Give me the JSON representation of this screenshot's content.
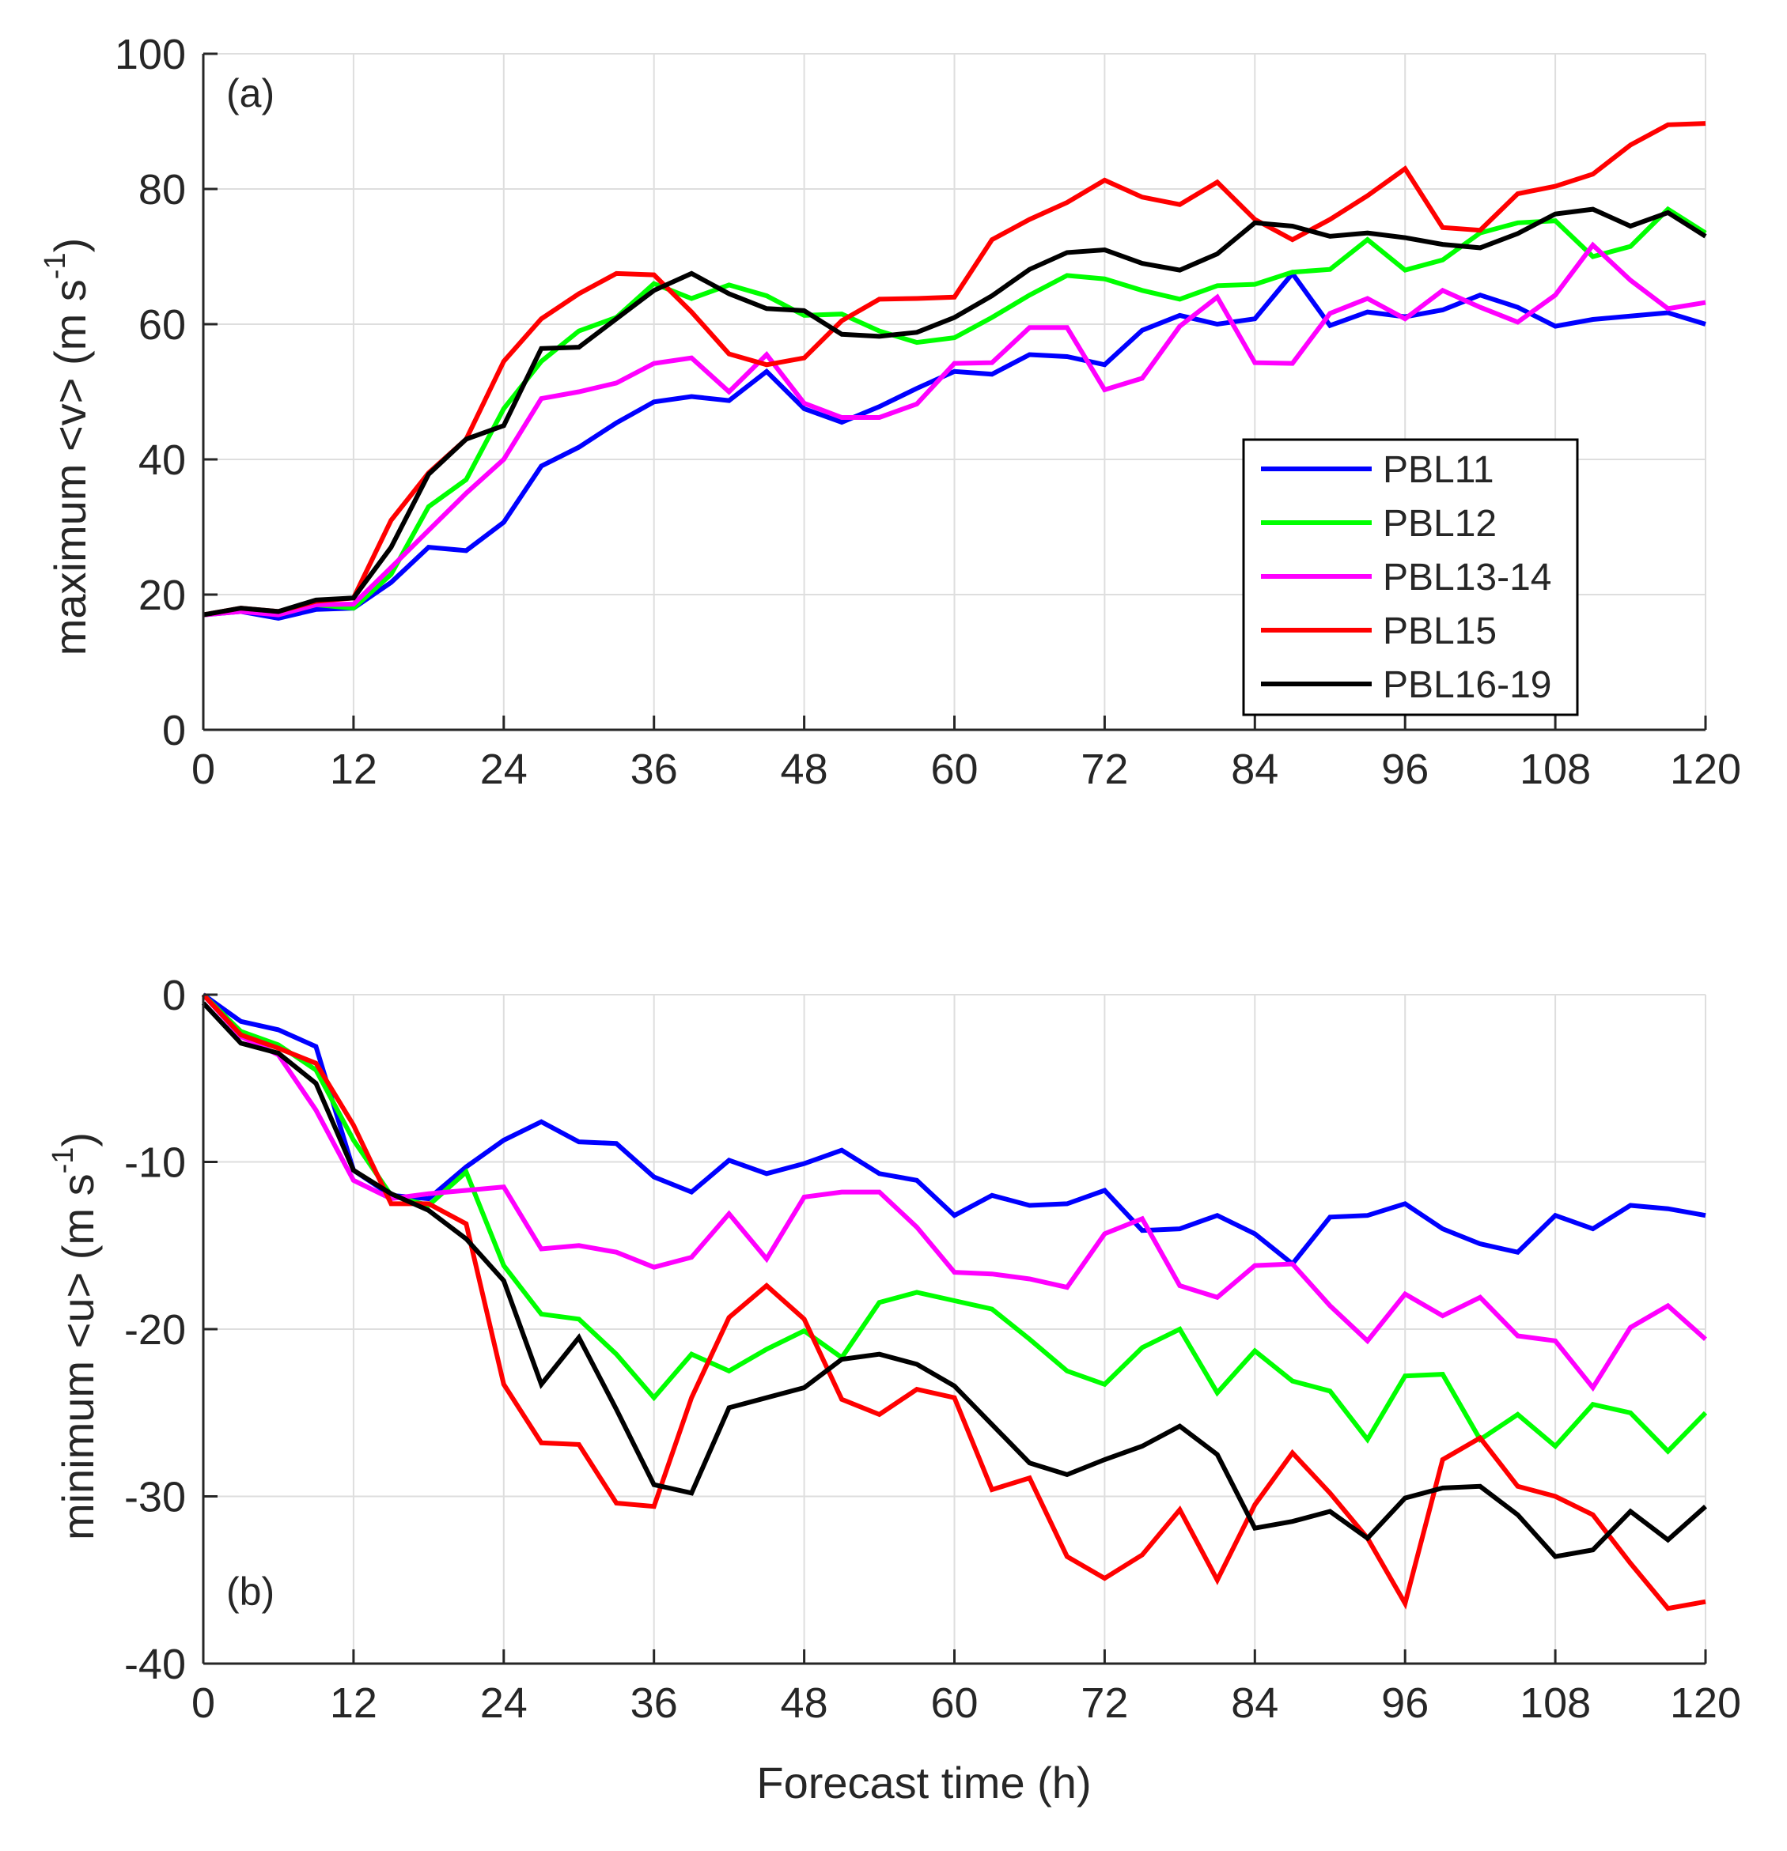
{
  "chart_data": [
    {
      "type": "line",
      "panel_label": "(a)",
      "title": "",
      "xlabel": "",
      "ylabel_main": "maximum <v> (m s",
      "ylabel_sup": "-1",
      "ylabel_end": ")",
      "xlim": [
        0,
        120
      ],
      "ylim": [
        0,
        100
      ],
      "xticks": [
        0,
        12,
        24,
        36,
        48,
        60,
        72,
        84,
        96,
        108,
        120
      ],
      "yticks": [
        0,
        20,
        40,
        60,
        80,
        100
      ],
      "grid": true,
      "legend": "right",
      "x": [
        0,
        3,
        6,
        9,
        12,
        15,
        18,
        21,
        24,
        27,
        30,
        33,
        36,
        39,
        42,
        45,
        48,
        51,
        54,
        57,
        60,
        63,
        66,
        69,
        72,
        75,
        78,
        81,
        84,
        87,
        90,
        93,
        96,
        99,
        102,
        105,
        108,
        111,
        114,
        117,
        120
      ],
      "series": [
        {
          "name": "PBL11",
          "color": "#0000ff",
          "values": [
            17,
            17.5,
            16.5,
            17.8,
            18,
            21.8,
            27,
            26.5,
            30.7,
            39,
            41.8,
            45.4,
            48.5,
            49.3,
            48.7,
            53,
            47.5,
            45.5,
            47.8,
            50.5,
            53,
            52.6,
            55.5,
            55.2,
            54,
            59.1,
            61.3,
            60,
            60.8,
            67.5,
            59.8,
            61.8,
            61.1,
            62.1,
            64.3,
            62.5,
            59.7,
            60.7,
            61.2,
            61.7,
            60
          ]
        },
        {
          "name": "PBL12",
          "color": "#00ff00",
          "values": [
            17,
            17.8,
            17,
            18.5,
            18,
            23,
            33,
            37,
            47.5,
            54.5,
            59,
            61,
            66,
            63.8,
            65.8,
            64.2,
            61.3,
            61.5,
            59,
            57.3,
            58,
            61,
            64.3,
            67.2,
            66.7,
            65,
            63.7,
            65.7,
            65.9,
            67.7,
            68.1,
            72.5,
            68,
            69.5,
            73.5,
            75,
            75.3,
            70,
            71.5,
            77,
            73.5
          ]
        },
        {
          "name": "PBL13-14",
          "color": "#ff00ff",
          "values": [
            17,
            17.5,
            17,
            18.5,
            18.6,
            24,
            29.5,
            35,
            40,
            49,
            50,
            51.3,
            54.2,
            55,
            50,
            55.5,
            48.3,
            46.2,
            46.2,
            48.2,
            54.2,
            54.3,
            59.5,
            59.5,
            50.3,
            52,
            59.7,
            64,
            54.3,
            54.2,
            61.6,
            63.8,
            60.8,
            65,
            62.5,
            60.3,
            64.3,
            71.7,
            66.5,
            62.3,
            63.2
          ]
        },
        {
          "name": "PBL15",
          "color": "#ff0000",
          "values": [
            17,
            18,
            17.5,
            19,
            19.5,
            31,
            38,
            43,
            54.5,
            60.8,
            64.5,
            67.5,
            67.3,
            61.8,
            55.6,
            54,
            55,
            60.5,
            63.7,
            63.8,
            64,
            72.5,
            75.5,
            78,
            81.3,
            78.8,
            77.7,
            81,
            75.5,
            72.5,
            75.5,
            79,
            83,
            74.3,
            73.9,
            79.3,
            80.4,
            82.2,
            86.5,
            89.5,
            89.7
          ]
        },
        {
          "name": "PBL16-19",
          "color": "#000000",
          "values": [
            17,
            18,
            17.5,
            19.2,
            19.5,
            27,
            37.8,
            43,
            45,
            56.4,
            56.6,
            60.8,
            65,
            67.5,
            64.5,
            62.3,
            62,
            58.5,
            58.2,
            58.8,
            61,
            64.2,
            68.1,
            70.6,
            71,
            69,
            68,
            70.4,
            75,
            74.5,
            73,
            73.5,
            72.8,
            71.8,
            71.3,
            73.4,
            76.3,
            77,
            74.5,
            76.5,
            73
          ]
        }
      ]
    },
    {
      "type": "line",
      "panel_label": "(b)",
      "title": "",
      "xlabel": "Forecast time (h)",
      "ylabel_main": "minimum <u> (m s",
      "ylabel_sup": "-1",
      "ylabel_end": ")",
      "xlim": [
        0,
        120
      ],
      "ylim": [
        -40,
        0
      ],
      "xticks": [
        0,
        12,
        24,
        36,
        48,
        60,
        72,
        84,
        96,
        108,
        120
      ],
      "yticks": [
        -40,
        -30,
        -20,
        -10,
        0
      ],
      "grid": true,
      "legend": "none",
      "x": [
        0,
        3,
        6,
        9,
        12,
        15,
        18,
        21,
        24,
        27,
        30,
        33,
        36,
        39,
        42,
        45,
        48,
        51,
        54,
        57,
        60,
        63,
        66,
        69,
        72,
        75,
        78,
        81,
        84,
        87,
        90,
        93,
        96,
        99,
        102,
        105,
        108,
        111,
        114,
        117,
        120
      ],
      "series": [
        {
          "name": "PBL11",
          "color": "#0000ff",
          "values": [
            0,
            -1.6,
            -2.1,
            -3.1,
            -10.5,
            -12,
            -12.2,
            -10.3,
            -8.7,
            -7.6,
            -8.8,
            -8.9,
            -10.9,
            -11.8,
            -9.9,
            -10.7,
            -10.1,
            -9.3,
            -10.7,
            -11.1,
            -13.2,
            -12,
            -12.6,
            -12.5,
            -11.7,
            -14.1,
            -14,
            -13.2,
            -14.3,
            -16.1,
            -13.3,
            -13.2,
            -12.5,
            -14,
            -14.9,
            -15.4,
            -13.2,
            -14,
            -12.6,
            -12.8,
            -13.2
          ]
        },
        {
          "name": "PBL12",
          "color": "#00ff00",
          "values": [
            0,
            -2.2,
            -3,
            -4.5,
            -8.7,
            -12,
            -12.6,
            -10.6,
            -16.2,
            -19.1,
            -19.4,
            -21.5,
            -24.1,
            -21.5,
            -22.5,
            -21.2,
            -20.1,
            -21.7,
            -18.4,
            -17.8,
            -18.3,
            -18.8,
            -20.6,
            -22.5,
            -23.3,
            -21.1,
            -20,
            -23.8,
            -21.3,
            -23.1,
            -23.7,
            -26.6,
            -22.8,
            -22.7,
            -26.6,
            -25.1,
            -27,
            -24.5,
            -25,
            -27.3,
            -25
          ]
        },
        {
          "name": "PBL13-14",
          "color": "#ff00ff",
          "values": [
            0,
            -2.5,
            -3.6,
            -6.9,
            -11.1,
            -12.2,
            -11.9,
            -11.7,
            -11.5,
            -15.2,
            -15,
            -15.4,
            -16.3,
            -15.7,
            -13.1,
            -15.8,
            -12.1,
            -11.8,
            -11.8,
            -13.9,
            -16.6,
            -16.7,
            -17,
            -17.5,
            -14.3,
            -13.4,
            -17.4,
            -18.1,
            -16.2,
            -16.1,
            -18.6,
            -20.7,
            -17.9,
            -19.2,
            -18.1,
            -20.4,
            -20.7,
            -23.5,
            -19.9,
            -18.6,
            -20.6
          ]
        },
        {
          "name": "PBL15",
          "color": "#ff0000",
          "values": [
            0,
            -2.4,
            -3.2,
            -4.1,
            -7.8,
            -12.5,
            -12.5,
            -13.7,
            -23.3,
            -26.8,
            -26.9,
            -30.4,
            -30.6,
            -24.1,
            -19.3,
            -17.4,
            -19.4,
            -24.2,
            -25.1,
            -23.6,
            -24.1,
            -29.6,
            -28.9,
            -33.6,
            -34.9,
            -33.5,
            -30.8,
            -35,
            -30.5,
            -27.4,
            -29.8,
            -32.5,
            -36.4,
            -27.8,
            -26.5,
            -29.4,
            -30,
            -31.1,
            -34,
            -36.7,
            -36.3
          ]
        },
        {
          "name": "PBL16-19",
          "color": "#000000",
          "values": [
            -0.5,
            -2.9,
            -3.5,
            -5.3,
            -10.5,
            -11.9,
            -12.9,
            -14.6,
            -17.1,
            -23.3,
            -20.5,
            -24.8,
            -29.3,
            -29.8,
            -24.7,
            -24.1,
            -23.5,
            -21.8,
            -21.5,
            -22.1,
            -23.4,
            -25.7,
            -28,
            -28.7,
            -27.8,
            -27,
            -25.8,
            -27.5,
            -31.9,
            -31.5,
            -30.9,
            -32.5,
            -30.1,
            -29.5,
            -29.4,
            -31.1,
            -33.6,
            -33.2,
            -30.9,
            -32.6,
            -30.6
          ]
        }
      ]
    }
  ]
}
